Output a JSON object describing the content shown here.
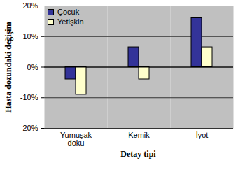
{
  "chart_data": {
    "type": "bar",
    "x_label": "Detay tipi",
    "y_label": "Hasta dozundaki değişim",
    "categories": [
      "Yumuşak doku",
      "Kemik",
      "İyot"
    ],
    "series": [
      {
        "name": "Çocuk",
        "color": "#333399",
        "values": [
          -4,
          6.5,
          16
        ]
      },
      {
        "name": "Yetişkin",
        "color": "#ffffcc",
        "values": [
          -9,
          -4,
          6.5
        ]
      }
    ],
    "ylim": [
      -20,
      20
    ],
    "yticks": [
      {
        "value": -20,
        "label": "-20%"
      },
      {
        "value": -10,
        "label": "-10%"
      },
      {
        "value": 0,
        "label": "0%"
      },
      {
        "value": 10,
        "label": "10%"
      },
      {
        "value": 20,
        "label": "20%"
      }
    ],
    "grid": true,
    "legend": "top-left"
  }
}
